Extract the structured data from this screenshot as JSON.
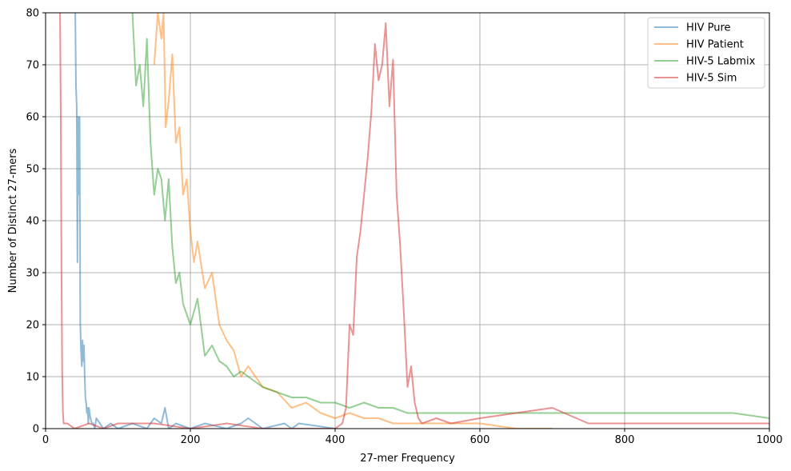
{
  "chart_data": {
    "type": "line",
    "title": "",
    "xlabel": "27-mer Frequency",
    "ylabel": "Number of Distinct 27-mers",
    "xlim": [
      0,
      1000
    ],
    "ylim": [
      0,
      80
    ],
    "xticks": [
      0,
      200,
      400,
      600,
      800,
      1000
    ],
    "yticks": [
      0,
      10,
      20,
      30,
      40,
      50,
      60,
      70,
      80
    ],
    "xtick_labels": [
      "0",
      "200",
      "400",
      "600",
      "800",
      "1000"
    ],
    "ytick_labels": [
      "0",
      "10",
      "20",
      "30",
      "40",
      "50",
      "60",
      "70",
      "80"
    ],
    "grid": true,
    "legend_position": "top-right",
    "series": [
      {
        "name": "HIV Pure",
        "color": "#1f77b4",
        "opacity": 0.5,
        "x": [
          40,
          41,
          42,
          43,
          44,
          45,
          46,
          47,
          48,
          49,
          50,
          51,
          52,
          53,
          54,
          55,
          56,
          57,
          58,
          59,
          60,
          62,
          64,
          66,
          68,
          70,
          75,
          80,
          90,
          100,
          120,
          140,
          150,
          160,
          165,
          170,
          180,
          200,
          220,
          250,
          270,
          280,
          300,
          330,
          340,
          350,
          400
        ],
        "y": [
          80,
          80,
          66,
          62,
          32,
          60,
          45,
          60,
          20,
          15,
          12,
          17,
          13,
          16,
          10,
          6,
          5,
          3,
          4,
          1,
          4,
          2,
          1,
          1,
          0,
          2,
          1,
          0,
          1,
          0,
          1,
          0,
          2,
          1,
          4,
          0,
          1,
          0,
          1,
          0,
          1,
          2,
          0,
          1,
          0,
          1,
          0
        ]
      },
      {
        "name": "HIV Patient",
        "color": "#ff7f0e",
        "opacity": 0.5,
        "x": [
          150,
          155,
          160,
          163,
          166,
          170,
          175,
          180,
          185,
          190,
          195,
          200,
          205,
          210,
          220,
          230,
          240,
          250,
          260,
          270,
          280,
          290,
          300,
          320,
          340,
          360,
          380,
          400,
          420,
          440,
          460,
          480,
          500,
          550,
          600,
          650,
          700
        ],
        "y": [
          70,
          80,
          75,
          80,
          58,
          63,
          72,
          55,
          58,
          45,
          48,
          38,
          32,
          36,
          27,
          30,
          20,
          17,
          15,
          10,
          12,
          10,
          8,
          7,
          4,
          5,
          3,
          2,
          3,
          2,
          2,
          1,
          1,
          1,
          1,
          0,
          0
        ]
      },
      {
        "name": "HIV-5 Labmix",
        "color": "#2ca02c",
        "opacity": 0.5,
        "x": [
          120,
          125,
          130,
          135,
          140,
          145,
          150,
          155,
          160,
          165,
          170,
          175,
          180,
          185,
          190,
          195,
          200,
          210,
          220,
          230,
          240,
          250,
          260,
          270,
          280,
          290,
          300,
          320,
          340,
          360,
          380,
          400,
          420,
          440,
          460,
          480,
          500,
          550,
          600,
          650,
          700,
          750,
          800,
          850,
          900,
          950,
          1000
        ],
        "y": [
          80,
          66,
          70,
          62,
          75,
          55,
          45,
          50,
          48,
          40,
          48,
          35,
          28,
          30,
          24,
          22,
          20,
          25,
          14,
          16,
          13,
          12,
          10,
          11,
          10,
          9,
          8,
          7,
          6,
          6,
          5,
          5,
          4,
          5,
          4,
          4,
          3,
          3,
          3,
          3,
          3,
          3,
          3,
          3,
          3,
          3,
          2
        ]
      },
      {
        "name": "HIV-5 Sim",
        "color": "#d62728",
        "opacity": 0.5,
        "x": [
          20,
          21,
          22,
          23,
          24,
          25,
          30,
          40,
          60,
          80,
          100,
          150,
          200,
          250,
          300,
          350,
          400,
          410,
          415,
          420,
          425,
          430,
          435,
          440,
          445,
          450,
          455,
          460,
          465,
          470,
          475,
          480,
          485,
          490,
          495,
          500,
          505,
          510,
          515,
          520,
          540,
          560,
          600,
          650,
          700,
          750,
          800,
          900,
          1000
        ],
        "y": [
          80,
          60,
          30,
          10,
          3,
          1,
          1,
          0,
          1,
          0,
          1,
          1,
          0,
          1,
          0,
          0,
          0,
          1,
          4,
          20,
          18,
          33,
          38,
          45,
          52,
          61,
          74,
          67,
          70,
          78,
          62,
          71,
          45,
          35,
          22,
          8,
          12,
          5,
          2,
          1,
          2,
          1,
          2,
          3,
          4,
          1,
          1,
          1,
          1
        ]
      }
    ]
  }
}
